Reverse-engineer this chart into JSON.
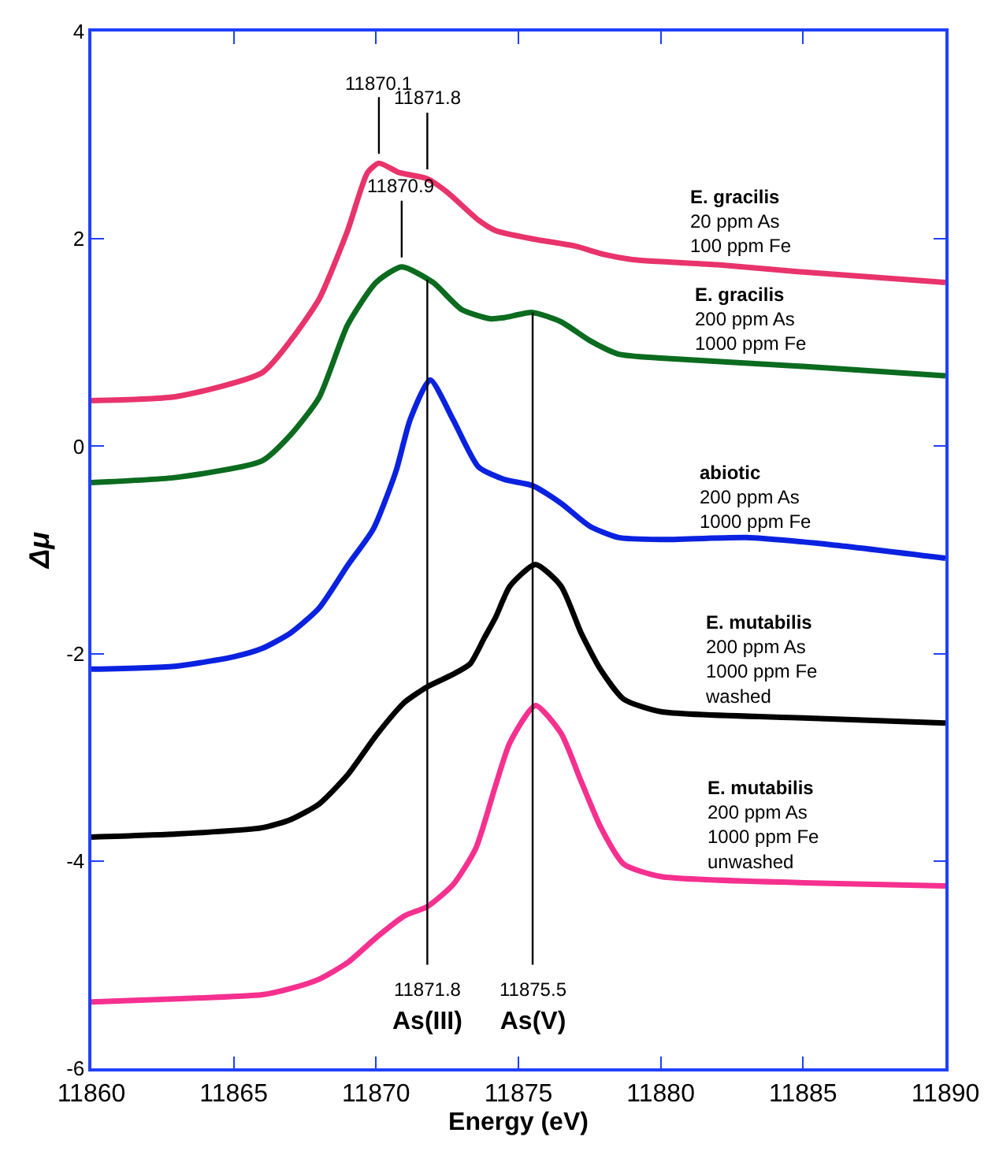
{
  "chart_data": {
    "type": "line",
    "xlabel": "Energy (eV)",
    "ylabel": "Δμ",
    "xlim": [
      11860,
      11890
    ],
    "xticks": [
      11860,
      11865,
      11870,
      11875,
      11880,
      11885,
      11890
    ],
    "ylim": [
      -6,
      4
    ],
    "yticks": [
      -6,
      -4,
      -2,
      0,
      2,
      4
    ],
    "legend": false,
    "marker": "none",
    "line_style": "solid",
    "series": [
      {
        "name": "E. gracilis\n20 ppm As\n100 ppm Fe",
        "color": "#e8336b",
        "x": [
          11860,
          11863,
          11866,
          11867,
          11868,
          11869,
          11869.7,
          11870.1,
          11870.8,
          11871.8,
          11872.5,
          11873.6,
          11874.2,
          11875.5,
          11877,
          11878,
          11879,
          11882,
          11885,
          11890
        ],
        "values": [
          0.44,
          0.48,
          0.71,
          1.02,
          1.42,
          2.08,
          2.64,
          2.73,
          2.64,
          2.58,
          2.45,
          2.18,
          2.08,
          2.0,
          1.93,
          1.85,
          1.8,
          1.75,
          1.68,
          1.58
        ]
      },
      {
        "name": "E. gracilis\n200 ppm As\n1000 ppm Fe",
        "color": "#0b6b1f",
        "x": [
          11860,
          11863,
          11866,
          11867,
          11868,
          11869,
          11870,
          11870.9,
          11872,
          11873,
          11874,
          11874.5,
          11875.5,
          11876.5,
          11877.5,
          11878.5,
          11880,
          11885,
          11890
        ],
        "values": [
          -0.35,
          -0.3,
          -0.14,
          0.11,
          0.47,
          1.17,
          1.58,
          1.73,
          1.58,
          1.32,
          1.23,
          1.24,
          1.29,
          1.2,
          1.02,
          0.89,
          0.85,
          0.77,
          0.68
        ]
      },
      {
        "name": "abiotic\n200 ppm As\n1000 ppm Fe",
        "color": "#0a22e0",
        "x": [
          11860,
          11863,
          11865,
          11866,
          11867,
          11868,
          11869,
          11869.9,
          11870.7,
          11871.2,
          11871.9,
          11872.7,
          11873.6,
          11874.5,
          11875.5,
          11876.5,
          11877.5,
          11878.5,
          11880,
          11883,
          11886,
          11890
        ],
        "values": [
          -2.15,
          -2.12,
          -2.03,
          -1.95,
          -1.8,
          -1.56,
          -1.15,
          -0.8,
          -0.24,
          0.26,
          0.64,
          0.26,
          -0.2,
          -0.32,
          -0.38,
          -0.55,
          -0.77,
          -0.88,
          -0.9,
          -0.88,
          -0.95,
          -1.08
        ]
      },
      {
        "name": "E. mutabilis\n200 ppm As\n1000 ppm Fe\nwashed",
        "color": "#000000",
        "x": [
          11860,
          11863,
          11866,
          11867,
          11868,
          11869,
          11870,
          11871,
          11871.8,
          11872.7,
          11873.3,
          11873.8,
          11874.2,
          11874.7,
          11875.6,
          11876.5,
          11877.2,
          11877.9,
          11878.7,
          11880,
          11885,
          11890
        ],
        "values": [
          -3.77,
          -3.74,
          -3.68,
          -3.6,
          -3.45,
          -3.17,
          -2.79,
          -2.47,
          -2.32,
          -2.2,
          -2.1,
          -1.85,
          -1.65,
          -1.35,
          -1.14,
          -1.35,
          -1.8,
          -2.16,
          -2.44,
          -2.56,
          -2.62,
          -2.67
        ]
      },
      {
        "name": "E. mutabilis\n200 ppm As\n1000 ppm Fe\nunwashed",
        "color": "#f5308f",
        "x": [
          11860,
          11863,
          11866,
          11867,
          11868,
          11869,
          11870,
          11871,
          11871.8,
          11872.7,
          11873.5,
          11874.2,
          11874.7,
          11875.6,
          11876.5,
          11877.2,
          11877.9,
          11878.7,
          11880,
          11885,
          11890
        ],
        "values": [
          -5.36,
          -5.33,
          -5.29,
          -5.23,
          -5.14,
          -4.98,
          -4.74,
          -4.53,
          -4.44,
          -4.23,
          -3.88,
          -3.27,
          -2.86,
          -2.5,
          -2.77,
          -3.23,
          -3.68,
          -4.03,
          -4.15,
          -4.21,
          -4.24
        ]
      }
    ],
    "annotations": [
      {
        "text": "11870.1",
        "x": 11870.1,
        "y": 2.73
      },
      {
        "text": "11871.8",
        "x": 11871.8,
        "y": 2.58
      },
      {
        "text": "11870.9",
        "x": 11870.9,
        "y": 1.73
      }
    ],
    "ref_lines": [
      {
        "axis": "x",
        "value": 11871.8,
        "label": "11871.8\nAs(III)",
        "color": "#000000"
      },
      {
        "axis": "x",
        "value": 11875.5,
        "label": "11875.5\nAs(V)",
        "color": "#000000"
      }
    ]
  }
}
